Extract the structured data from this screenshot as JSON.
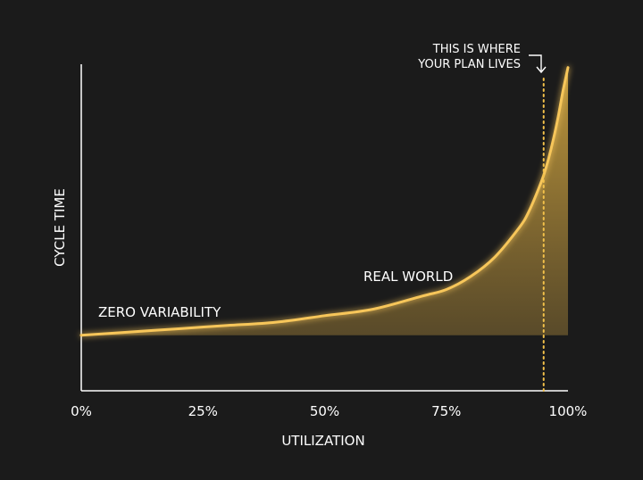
{
  "chart_data": {
    "type": "area",
    "title": "",
    "xlabel": "UTILIZATION",
    "ylabel": "CYCLE TIME",
    "x_ticks": [
      "0%",
      "25%",
      "50%",
      "75%",
      "100%"
    ],
    "xlim": [
      0,
      100
    ],
    "ylim": [
      0,
      1
    ],
    "grid": false,
    "series": [
      {
        "name": "ZERO VARIABILITY",
        "x": [
          0,
          100
        ],
        "y": [
          0.17,
          0.17
        ]
      },
      {
        "name": "REAL WORLD",
        "x": [
          0,
          10,
          20,
          30,
          40,
          50,
          60,
          70,
          75,
          80,
          85,
          90,
          92,
          94,
          95,
          96,
          97,
          98,
          99,
          100
        ],
        "y": [
          0.17,
          0.18,
          0.19,
          0.2,
          0.21,
          0.23,
          0.25,
          0.29,
          0.31,
          0.35,
          0.41,
          0.5,
          0.55,
          0.62,
          0.66,
          0.71,
          0.77,
          0.84,
          0.92,
          0.99
        ]
      }
    ],
    "annotation": {
      "x": 95,
      "line1": "THIS IS WHERE",
      "line2": "YOUR PLAN LIVES"
    },
    "colors": {
      "background": "#1b1b1b",
      "axis": "#ffffff",
      "curve": "#f7c65a",
      "baseline": "#f3c14a",
      "fill": "#b8913a",
      "marker": "#f3c14a"
    }
  }
}
